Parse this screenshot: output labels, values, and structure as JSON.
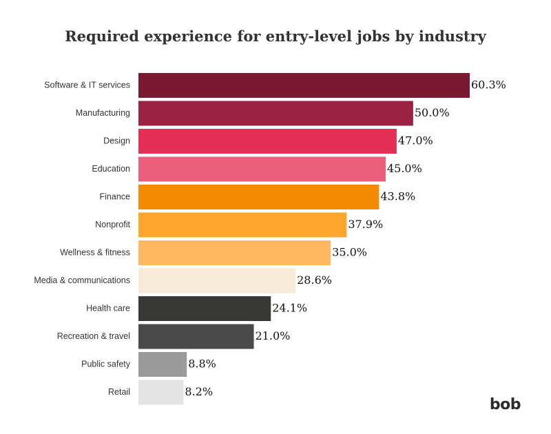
{
  "brand": {
    "logo_text": "bob"
  },
  "chart_data": {
    "type": "bar",
    "orientation": "horizontal",
    "title": "Required experience for entry-level jobs by industry",
    "xlabel": "",
    "ylabel": "",
    "xlim": [
      0,
      60.3
    ],
    "grid": false,
    "legend": "none",
    "value_suffix": "%",
    "categories": [
      "Software & IT services",
      "Manufacturing",
      "Design",
      "Education",
      "Finance",
      "Nonprofit",
      "Wellness & fitness",
      "Media & communications",
      "Health care",
      "Recreation & travel",
      "Public safety",
      "Retail"
    ],
    "values": [
      60.3,
      50.0,
      47.0,
      45.0,
      43.8,
      37.9,
      35.0,
      28.6,
      24.1,
      21.0,
      8.8,
      8.2
    ],
    "value_labels": [
      "60.3%",
      "50.0%",
      "47.0%",
      "45.0%",
      "43.8%",
      "37.9%",
      "35.0%",
      "28.6%",
      "24.1%",
      "21.0%",
      "8.8%",
      "8.2%"
    ],
    "colors": [
      "#7a1a32",
      "#9c2244",
      "#e62e55",
      "#ec5f7a",
      "#f38b00",
      "#ffa42c",
      "#ffb85e",
      "#f7ead9",
      "#383834",
      "#4a4a4a",
      "#9a9a9a",
      "#e3e3e3"
    ]
  }
}
